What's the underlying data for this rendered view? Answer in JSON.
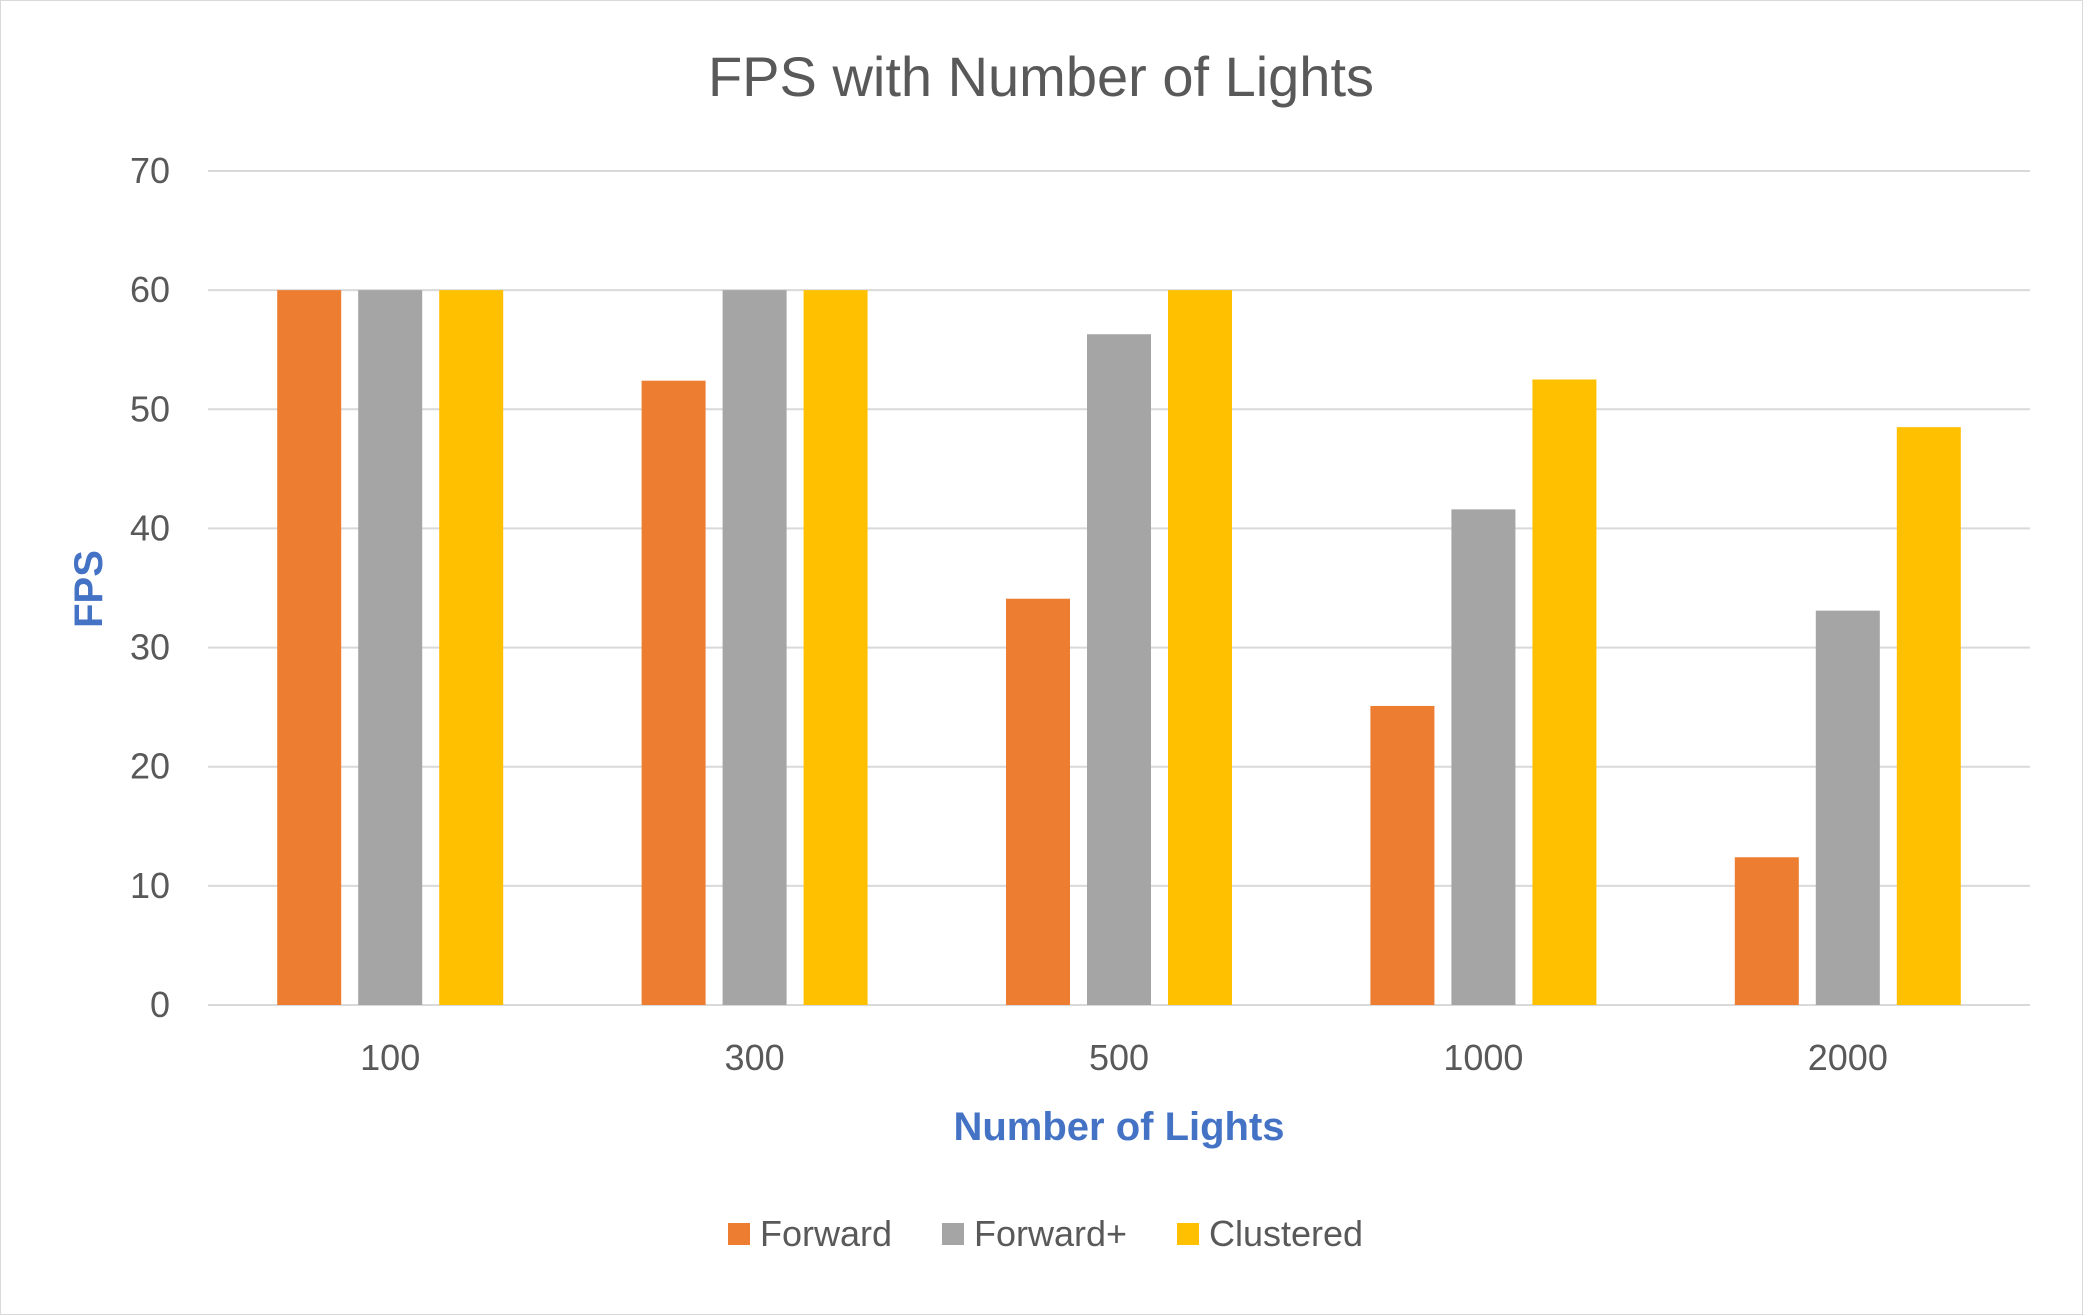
{
  "chart_data": {
    "type": "bar",
    "title": "FPS with Number of Lights",
    "xlabel": "Number of Lights",
    "ylabel": "FPS",
    "categories": [
      "100",
      "300",
      "500",
      "1000",
      "2000"
    ],
    "series": [
      {
        "name": "Forward",
        "color": "#ed7d31",
        "values": [
          60,
          52.4,
          34.1,
          25.1,
          12.4
        ]
      },
      {
        "name": "Forward+",
        "color": "#a5a5a5",
        "values": [
          60,
          60,
          56.3,
          41.6,
          33.1
        ]
      },
      {
        "name": "Clustered",
        "color": "#ffc000",
        "values": [
          60,
          60,
          60,
          52.5,
          48.5
        ]
      }
    ],
    "ylim": [
      0,
      70
    ],
    "yticks": [
      0,
      10,
      20,
      30,
      40,
      50,
      60,
      70
    ],
    "grid": true,
    "legend_position": "bottom"
  }
}
